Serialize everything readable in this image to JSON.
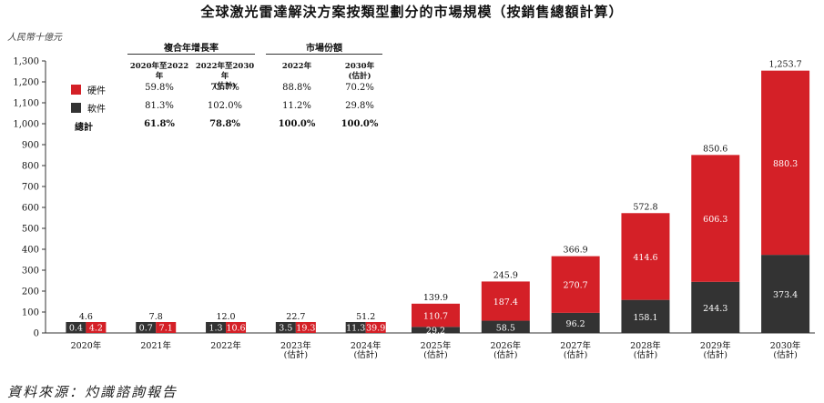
{
  "title": "全球激光雷達解決方案按類型劃分的市場規模（按銷售總額計算）",
  "unit": "人民幣十億元",
  "source": "資料來源：灼識諮詢報告",
  "colors": {
    "hardware": "#d42027",
    "software": "#333333"
  },
  "chart_data": {
    "type": "bar",
    "stacked": true,
    "categories": [
      "2020年",
      "2021年",
      "2022年",
      "2023年(估計)",
      "2024年(估計)",
      "2025年(估計)",
      "2026年(估計)",
      "2027年(估計)",
      "2028年(估計)",
      "2029年(估計)",
      "2030年(估計)"
    ],
    "category_lines": [
      [
        "2020年"
      ],
      [
        "2021年"
      ],
      [
        "2022年"
      ],
      [
        "2023年",
        "(估計)"
      ],
      [
        "2024年",
        "(估計)"
      ],
      [
        "2025年",
        "(估計)"
      ],
      [
        "2026年",
        "(估計)"
      ],
      [
        "2027年",
        "(估計)"
      ],
      [
        "2028年",
        "(估計)"
      ],
      [
        "2029年",
        "(估計)"
      ],
      [
        "2030年",
        "(估計)"
      ]
    ],
    "series": [
      {
        "name": "軟件",
        "values": [
          0.4,
          0.7,
          1.3,
          3.5,
          11.3,
          29.2,
          58.5,
          96.2,
          158.1,
          244.3,
          373.4
        ]
      },
      {
        "name": "硬件",
        "values": [
          4.2,
          7.1,
          10.6,
          19.3,
          39.9,
          110.7,
          187.4,
          270.7,
          414.6,
          606.3,
          880.3
        ]
      }
    ],
    "totals": [
      "4.6",
      "7.8",
      "12.0",
      "22.7",
      "51.2",
      "139.9",
      "245.9",
      "366.9",
      "572.8",
      "850.6",
      "1,253.7"
    ],
    "software_labels": [
      "0.4",
      "0.7",
      "1.3",
      "3.5",
      "11.3",
      "29.2",
      "58.5",
      "96.2",
      "158.1",
      "244.3",
      "373.4"
    ],
    "hardware_labels": [
      "4.2",
      "7.1",
      "10.6",
      "19.3",
      "39.9",
      "110.7",
      "187.4",
      "270.7",
      "414.6",
      "606.3",
      "880.3"
    ],
    "yticks": [
      0,
      100,
      200,
      300,
      400,
      500,
      600,
      700,
      800,
      900,
      1000,
      1100,
      1200,
      1300
    ],
    "ytick_labels": [
      "0",
      "100",
      "200",
      "300",
      "400",
      "500",
      "600",
      "700",
      "800",
      "900",
      "1,000",
      "1,100",
      "1,200",
      "1,300"
    ],
    "ylim": [
      0,
      1300
    ]
  },
  "table": {
    "group1": "複合年增長率",
    "group2": "市場份額",
    "col1": "2020年至2022年",
    "col2": "2022年至2030年",
    "col2_sub": "(估計)",
    "col3": "2022年",
    "col4": "2030年",
    "col4_sub": "(估計)",
    "rows": [
      {
        "name": "硬件",
        "c1": "59.8%",
        "c2": "73.7%",
        "c3": "88.8%",
        "c4": "70.2%"
      },
      {
        "name": "軟件",
        "c1": "81.3%",
        "c2": "102.0%",
        "c3": "11.2%",
        "c4": "29.8%"
      },
      {
        "name": "總計",
        "c1": "61.8%",
        "c2": "78.8%",
        "c3": "100.0%",
        "c4": "100.0%"
      }
    ]
  }
}
